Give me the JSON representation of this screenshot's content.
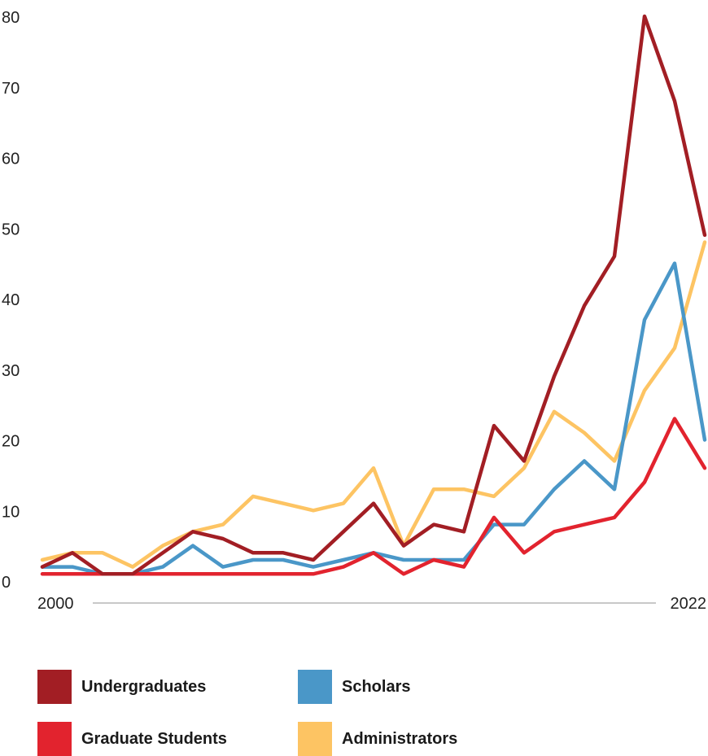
{
  "chart_data": {
    "type": "line",
    "x": [
      2000,
      2001,
      2002,
      2003,
      2004,
      2005,
      2006,
      2007,
      2008,
      2009,
      2010,
      2011,
      2012,
      2013,
      2014,
      2015,
      2016,
      2017,
      2018,
      2019,
      2020,
      2021,
      2022
    ],
    "x_tick_labels": [
      "2000",
      "2022"
    ],
    "y_ticks": [
      0,
      10,
      20,
      30,
      40,
      50,
      60,
      70,
      80
    ],
    "ylim": [
      0,
      80
    ],
    "grid": false,
    "legend_position": "bottom",
    "series": [
      {
        "name": "Administrators",
        "color": "#FDC463",
        "values": [
          3,
          4,
          4,
          2,
          5,
          7,
          8,
          12,
          11,
          10,
          11,
          16,
          5,
          13,
          13,
          12,
          16,
          24,
          21,
          17,
          27,
          33,
          48
        ]
      },
      {
        "name": "Scholars",
        "color": "#4A97C8",
        "values": [
          2,
          2,
          1,
          1,
          2,
          5,
          2,
          3,
          3,
          2,
          3,
          4,
          3,
          3,
          3,
          8,
          8,
          13,
          17,
          13,
          37,
          45,
          20
        ]
      },
      {
        "name": "Graduate Students",
        "color": "#E2232E",
        "values": [
          1,
          1,
          1,
          1,
          1,
          1,
          1,
          1,
          1,
          1,
          2,
          4,
          1,
          3,
          2,
          9,
          4,
          7,
          8,
          9,
          14,
          23,
          16
        ]
      },
      {
        "name": "Undergraduates",
        "color": "#A21E24",
        "values": [
          2,
          4,
          1,
          1,
          4,
          7,
          6,
          4,
          4,
          3,
          7,
          11,
          5,
          8,
          7,
          22,
          17,
          29,
          39,
          46,
          80,
          68,
          49
        ]
      }
    ]
  },
  "legend": {
    "items": [
      {
        "label": "Undergraduates",
        "color": "#A21E24"
      },
      {
        "label": "Scholars",
        "color": "#4A97C8"
      },
      {
        "label": "Graduate Students",
        "color": "#E2232E"
      },
      {
        "label": "Administrators",
        "color": "#FDC463"
      }
    ]
  },
  "colors": {
    "axis_line": "#C8C8C8",
    "text": "#222222"
  }
}
